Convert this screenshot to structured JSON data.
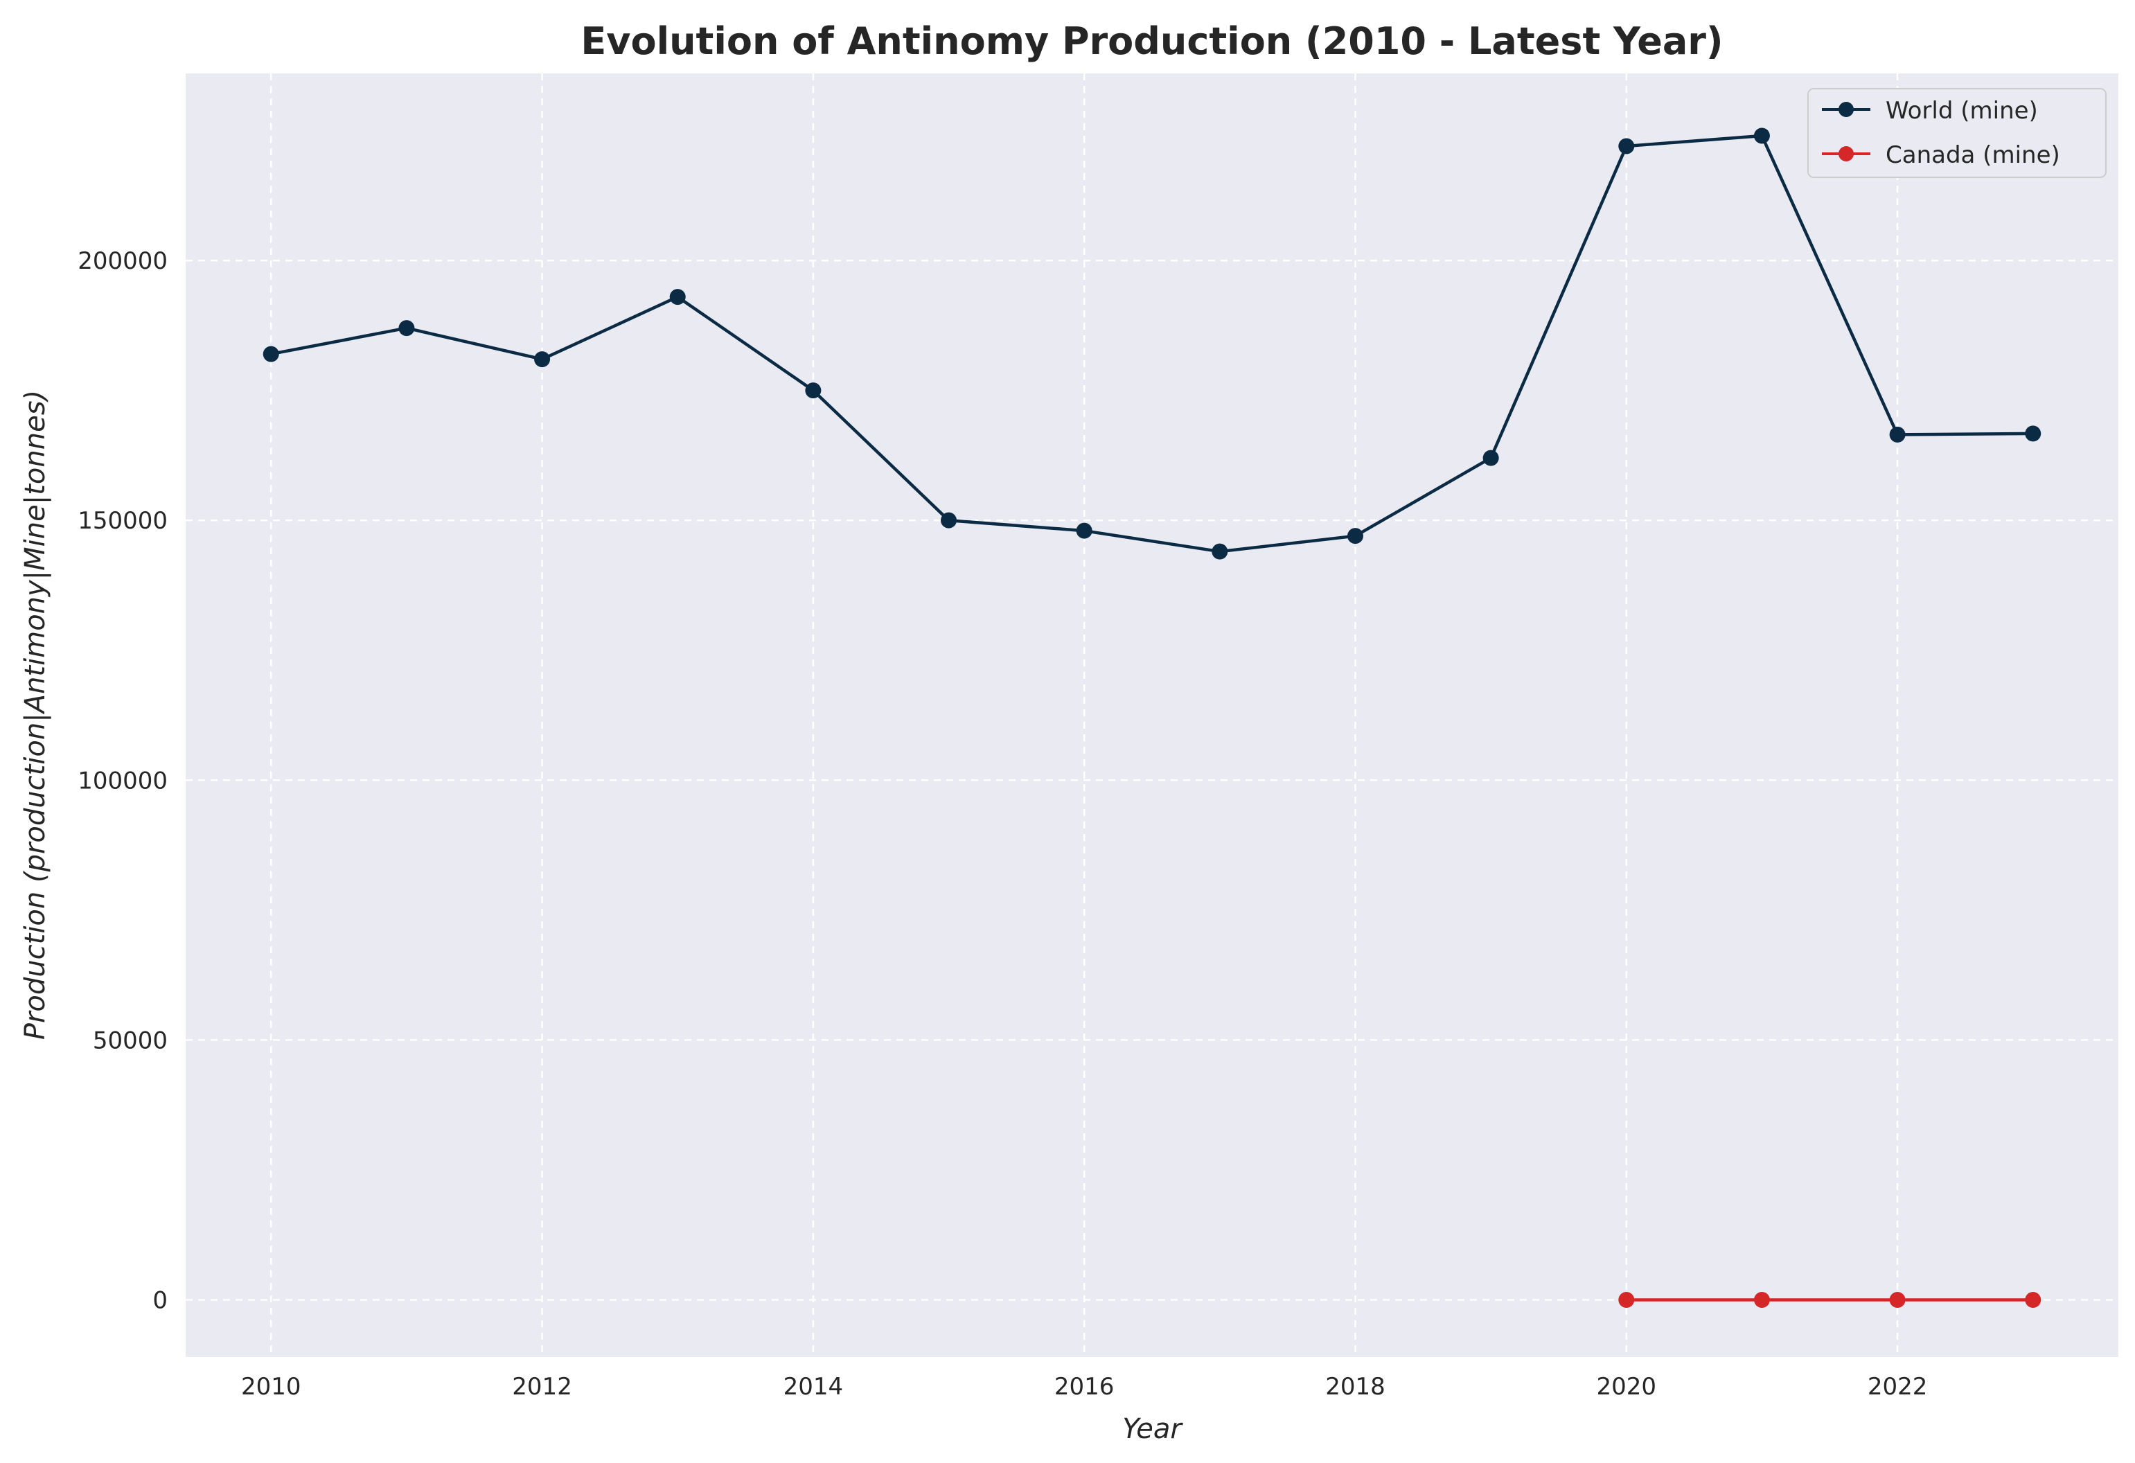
{
  "chart_data": {
    "type": "line",
    "title": "Evolution of Antinomy Production (2010 - Latest Year)",
    "xlabel": "Year",
    "ylabel": "Production (production|Antimony|Mine|tonnes)",
    "xlim": [
      2009.37,
      2023.63
    ],
    "ylim": [
      -11000,
      236000
    ],
    "xticks": [
      2010,
      2012,
      2014,
      2016,
      2018,
      2020,
      2022
    ],
    "yticks": [
      0,
      50000,
      100000,
      150000,
      200000
    ],
    "grid": true,
    "legend_position": "top-right",
    "background": "#eaeaf2",
    "series": [
      {
        "name": "World (mine)",
        "color": "#0b2b45",
        "x": [
          2010,
          2011,
          2012,
          2013,
          2014,
          2015,
          2016,
          2017,
          2018,
          2019,
          2020,
          2021,
          2022,
          2023
        ],
        "y": [
          182000,
          187000,
          181000,
          193000,
          175000,
          150000,
          148000,
          144000,
          147000,
          162000,
          222000,
          224000,
          166500,
          166700
        ]
      },
      {
        "name": "Canada (mine)",
        "color": "#d62728",
        "x": [
          2020,
          2021,
          2022,
          2023
        ],
        "y": [
          0,
          0,
          0,
          0
        ]
      }
    ]
  }
}
